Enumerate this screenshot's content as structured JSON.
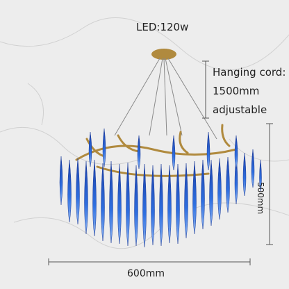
{
  "image": {
    "led_label": "LED:120w",
    "cord_line1": "Hanging cord:",
    "cord_line2": "1500mm",
    "cord_line3": "adjustable",
    "width_label": "600mm",
    "height_label": "500mm",
    "crystal_color": "#2f5fd0",
    "metal_color": "#b08a3e",
    "background_color": "#eeeeee"
  }
}
